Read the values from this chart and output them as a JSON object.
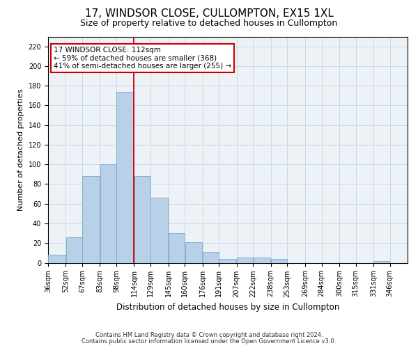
{
  "title": "17, WINDSOR CLOSE, CULLOMPTON, EX15 1XL",
  "subtitle": "Size of property relative to detached houses in Cullompton",
  "xlabel": "Distribution of detached houses by size in Cullompton",
  "ylabel": "Number of detached properties",
  "footnote1": "Contains HM Land Registry data © Crown copyright and database right 2024.",
  "footnote2": "Contains public sector information licensed under the Open Government Licence v3.0.",
  "annotation_line1": "17 WINDSOR CLOSE: 112sqm",
  "annotation_line2": "← 59% of detached houses are smaller (368)",
  "annotation_line3": "41% of semi-detached houses are larger (255) →",
  "bar_color": "#b8d0e8",
  "bar_edge_color": "#7aaacb",
  "ref_line_color": "#cc0000",
  "ref_line_x": 114,
  "categories": [
    "36sqm",
    "52sqm",
    "67sqm",
    "83sqm",
    "98sqm",
    "114sqm",
    "129sqm",
    "145sqm",
    "160sqm",
    "176sqm",
    "191sqm",
    "207sqm",
    "222sqm",
    "238sqm",
    "253sqm",
    "269sqm",
    "284sqm",
    "300sqm",
    "315sqm",
    "331sqm",
    "346sqm"
  ],
  "bin_edges": [
    36,
    52,
    67,
    83,
    98,
    114,
    129,
    145,
    160,
    176,
    191,
    207,
    222,
    238,
    253,
    269,
    284,
    300,
    315,
    331,
    346,
    362
  ],
  "bar_heights": [
    8,
    26,
    88,
    100,
    174,
    88,
    66,
    30,
    21,
    11,
    4,
    5,
    5,
    4,
    0,
    0,
    0,
    0,
    0,
    2,
    0
  ],
  "ylim": [
    0,
    230
  ],
  "yticks": [
    0,
    20,
    40,
    60,
    80,
    100,
    120,
    140,
    160,
    180,
    200,
    220
  ],
  "grid_color": "#c8d8e8",
  "background_color": "#edf2f7",
  "title_fontsize": 11,
  "subtitle_fontsize": 9,
  "ylabel_fontsize": 8,
  "xlabel_fontsize": 8.5,
  "tick_fontsize": 7,
  "annotation_fontsize": 7.5,
  "footnote_fontsize": 6
}
